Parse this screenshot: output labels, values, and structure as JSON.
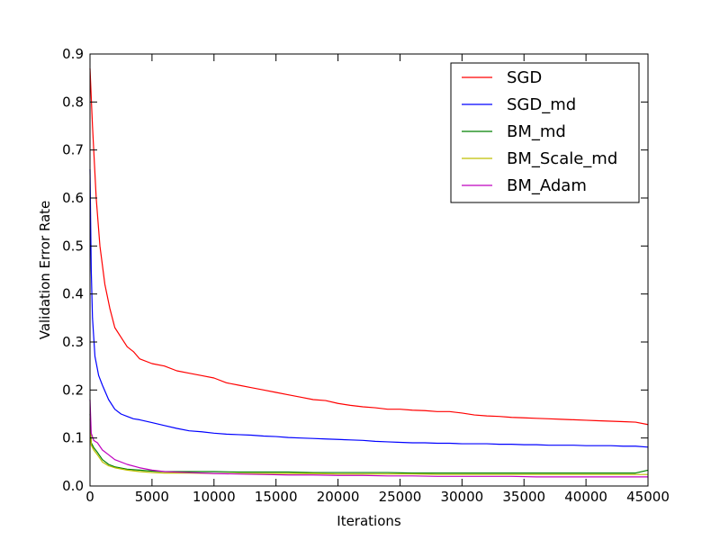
{
  "chart_data": {
    "type": "line",
    "xlabel": "Iterations",
    "ylabel": "Validation Error Rate",
    "xlim": [
      0,
      45000
    ],
    "ylim": [
      0.0,
      0.9
    ],
    "xticks": [
      0,
      5000,
      10000,
      15000,
      20000,
      25000,
      30000,
      35000,
      40000,
      45000
    ],
    "xtick_labels": [
      "0",
      "5000",
      "10000",
      "15000",
      "20000",
      "25000",
      "30000",
      "35000",
      "40000",
      "45000"
    ],
    "yticks": [
      0.0,
      0.1,
      0.2,
      0.3,
      0.4,
      0.5,
      0.6,
      0.7,
      0.8,
      0.9
    ],
    "ytick_labels": [
      "0.0",
      "0.1",
      "0.2",
      "0.3",
      "0.4",
      "0.5",
      "0.6",
      "0.7",
      "0.8",
      "0.9"
    ],
    "grid": false,
    "legend_position": "top-right",
    "series": [
      {
        "name": "SGD",
        "color": "#ff0000",
        "points": [
          [
            0,
            0.87
          ],
          [
            200,
            0.75
          ],
          [
            500,
            0.6
          ],
          [
            800,
            0.5
          ],
          [
            1200,
            0.42
          ],
          [
            1600,
            0.37
          ],
          [
            2000,
            0.33
          ],
          [
            2500,
            0.31
          ],
          [
            3000,
            0.29
          ],
          [
            3500,
            0.28
          ],
          [
            4000,
            0.265
          ],
          [
            5000,
            0.255
          ],
          [
            6000,
            0.25
          ],
          [
            7000,
            0.24
          ],
          [
            8000,
            0.235
          ],
          [
            9000,
            0.23
          ],
          [
            10000,
            0.225
          ],
          [
            11000,
            0.215
          ],
          [
            12000,
            0.21
          ],
          [
            13000,
            0.205
          ],
          [
            14000,
            0.2
          ],
          [
            15000,
            0.195
          ],
          [
            16000,
            0.19
          ],
          [
            17000,
            0.185
          ],
          [
            18000,
            0.18
          ],
          [
            19000,
            0.178
          ],
          [
            20000,
            0.172
          ],
          [
            21000,
            0.168
          ],
          [
            22000,
            0.165
          ],
          [
            23000,
            0.163
          ],
          [
            24000,
            0.16
          ],
          [
            25000,
            0.16
          ],
          [
            26000,
            0.158
          ],
          [
            27000,
            0.157
          ],
          [
            28000,
            0.155
          ],
          [
            29000,
            0.155
          ],
          [
            30000,
            0.152
          ],
          [
            31000,
            0.148
          ],
          [
            32000,
            0.146
          ],
          [
            33000,
            0.145
          ],
          [
            34000,
            0.143
          ],
          [
            35000,
            0.142
          ],
          [
            36000,
            0.141
          ],
          [
            37000,
            0.14
          ],
          [
            38000,
            0.139
          ],
          [
            39000,
            0.138
          ],
          [
            40000,
            0.137
          ],
          [
            41000,
            0.136
          ],
          [
            42000,
            0.135
          ],
          [
            43000,
            0.134
          ],
          [
            44000,
            0.133
          ],
          [
            45000,
            0.128
          ]
        ]
      },
      {
        "name": "SGD_md",
        "color": "#0000ff",
        "points": [
          [
            0,
            0.66
          ],
          [
            100,
            0.45
          ],
          [
            200,
            0.35
          ],
          [
            400,
            0.27
          ],
          [
            700,
            0.23
          ],
          [
            1000,
            0.21
          ],
          [
            1500,
            0.18
          ],
          [
            2000,
            0.16
          ],
          [
            2500,
            0.15
          ],
          [
            3000,
            0.145
          ],
          [
            3500,
            0.14
          ],
          [
            4000,
            0.138
          ],
          [
            5000,
            0.132
          ],
          [
            6000,
            0.126
          ],
          [
            7000,
            0.12
          ],
          [
            8000,
            0.115
          ],
          [
            9000,
            0.113
          ],
          [
            10000,
            0.11
          ],
          [
            11000,
            0.108
          ],
          [
            12000,
            0.107
          ],
          [
            13000,
            0.106
          ],
          [
            14000,
            0.104
          ],
          [
            15000,
            0.103
          ],
          [
            16000,
            0.101
          ],
          [
            17000,
            0.1
          ],
          [
            18000,
            0.099
          ],
          [
            19000,
            0.098
          ],
          [
            20000,
            0.097
          ],
          [
            21000,
            0.096
          ],
          [
            22000,
            0.095
          ],
          [
            23000,
            0.093
          ],
          [
            24000,
            0.092
          ],
          [
            25000,
            0.091
          ],
          [
            26000,
            0.09
          ],
          [
            27000,
            0.09
          ],
          [
            28000,
            0.089
          ],
          [
            29000,
            0.089
          ],
          [
            30000,
            0.088
          ],
          [
            31000,
            0.088
          ],
          [
            32000,
            0.088
          ],
          [
            33000,
            0.087
          ],
          [
            34000,
            0.087
          ],
          [
            35000,
            0.086
          ],
          [
            36000,
            0.086
          ],
          [
            37000,
            0.085
          ],
          [
            38000,
            0.085
          ],
          [
            39000,
            0.085
          ],
          [
            40000,
            0.084
          ],
          [
            41000,
            0.084
          ],
          [
            42000,
            0.084
          ],
          [
            43000,
            0.083
          ],
          [
            44000,
            0.083
          ],
          [
            45000,
            0.081
          ]
        ]
      },
      {
        "name": "BM_md",
        "color": "#008000",
        "points": [
          [
            0,
            0.15
          ],
          [
            100,
            0.09
          ],
          [
            300,
            0.08
          ],
          [
            600,
            0.07
          ],
          [
            1000,
            0.055
          ],
          [
            1500,
            0.045
          ],
          [
            2000,
            0.04
          ],
          [
            3000,
            0.035
          ],
          [
            4000,
            0.033
          ],
          [
            5000,
            0.031
          ],
          [
            6000,
            0.03
          ],
          [
            8000,
            0.03
          ],
          [
            10000,
            0.03
          ],
          [
            12000,
            0.029
          ],
          [
            14000,
            0.029
          ],
          [
            16000,
            0.029
          ],
          [
            18000,
            0.028
          ],
          [
            20000,
            0.028
          ],
          [
            22000,
            0.028
          ],
          [
            24000,
            0.028
          ],
          [
            26000,
            0.027
          ],
          [
            28000,
            0.027
          ],
          [
            30000,
            0.027
          ],
          [
            32000,
            0.027
          ],
          [
            34000,
            0.027
          ],
          [
            36000,
            0.027
          ],
          [
            38000,
            0.027
          ],
          [
            40000,
            0.027
          ],
          [
            42000,
            0.027
          ],
          [
            44000,
            0.027
          ],
          [
            45000,
            0.033
          ]
        ]
      },
      {
        "name": "BM_Scale_md",
        "color": "#bfbf00",
        "points": [
          [
            0,
            0.14
          ],
          [
            100,
            0.085
          ],
          [
            300,
            0.075
          ],
          [
            600,
            0.065
          ],
          [
            1000,
            0.05
          ],
          [
            1500,
            0.042
          ],
          [
            2000,
            0.038
          ],
          [
            3000,
            0.033
          ],
          [
            4000,
            0.03
          ],
          [
            5000,
            0.028
          ],
          [
            6000,
            0.027
          ],
          [
            8000,
            0.027
          ],
          [
            10000,
            0.026
          ],
          [
            12000,
            0.026
          ],
          [
            14000,
            0.026
          ],
          [
            16000,
            0.026
          ],
          [
            18000,
            0.026
          ],
          [
            20000,
            0.025
          ],
          [
            22000,
            0.025
          ],
          [
            24000,
            0.025
          ],
          [
            26000,
            0.025
          ],
          [
            28000,
            0.024
          ],
          [
            30000,
            0.024
          ],
          [
            32000,
            0.024
          ],
          [
            34000,
            0.024
          ],
          [
            36000,
            0.024
          ],
          [
            38000,
            0.024
          ],
          [
            40000,
            0.024
          ],
          [
            42000,
            0.024
          ],
          [
            44000,
            0.024
          ],
          [
            45000,
            0.024
          ]
        ]
      },
      {
        "name": "BM_Adam",
        "color": "#bf00bf",
        "points": [
          [
            0,
            0.18
          ],
          [
            100,
            0.11
          ],
          [
            300,
            0.095
          ],
          [
            600,
            0.09
          ],
          [
            1000,
            0.075
          ],
          [
            1500,
            0.065
          ],
          [
            2000,
            0.055
          ],
          [
            3000,
            0.045
          ],
          [
            4000,
            0.038
          ],
          [
            5000,
            0.033
          ],
          [
            6000,
            0.03
          ],
          [
            8000,
            0.028
          ],
          [
            10000,
            0.026
          ],
          [
            12000,
            0.025
          ],
          [
            14000,
            0.024
          ],
          [
            16000,
            0.023
          ],
          [
            18000,
            0.023
          ],
          [
            20000,
            0.022
          ],
          [
            22000,
            0.022
          ],
          [
            24000,
            0.021
          ],
          [
            26000,
            0.021
          ],
          [
            28000,
            0.02
          ],
          [
            30000,
            0.02
          ],
          [
            32000,
            0.02
          ],
          [
            34000,
            0.02
          ],
          [
            36000,
            0.019
          ],
          [
            38000,
            0.019
          ],
          [
            40000,
            0.019
          ],
          [
            42000,
            0.019
          ],
          [
            44000,
            0.019
          ],
          [
            45000,
            0.019
          ]
        ]
      }
    ]
  }
}
